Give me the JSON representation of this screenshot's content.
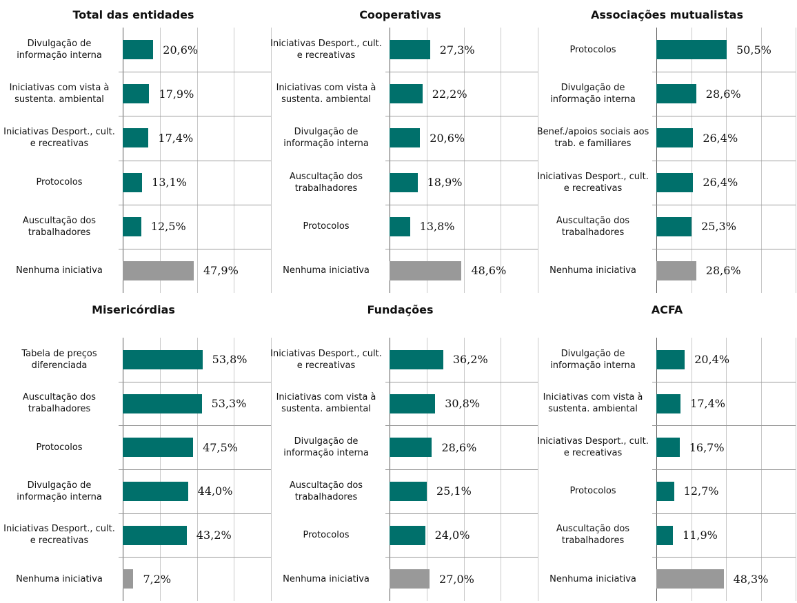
{
  "chart_data": [
    {
      "type": "barh",
      "title": "Total das entidades",
      "categories": [
        "Divulgação de informação interna",
        "Iniciativas com vista à sustenta. ambiental",
        "Iniciativas Desport., cult. e recreativas",
        "Protocolos",
        "Auscultação dos trabalhadores",
        "Nenhuma iniciativa"
      ],
      "values": [
        20.6,
        17.9,
        17.4,
        13.1,
        12.5,
        47.9
      ],
      "value_labels": [
        "20,6%",
        "17,9%",
        "17,4%",
        "13,1%",
        "12,5%",
        "47,9%"
      ],
      "colors": [
        "#00706b",
        "#00706b",
        "#00706b",
        "#00706b",
        "#00706b",
        "#999999"
      ],
      "xlim": [
        0,
        100
      ],
      "xticks": [
        0,
        25,
        50,
        75,
        100
      ],
      "grid": true
    },
    {
      "type": "barh",
      "title": "Cooperativas",
      "categories": [
        "Iniciativas Desport., cult. e recreativas",
        "Iniciativas com vista à sustenta. ambiental",
        "Divulgação de informação interna",
        "Auscultação dos trabalhadores",
        "Protocolos",
        "Nenhuma iniciativa"
      ],
      "values": [
        27.3,
        22.2,
        20.6,
        18.9,
        13.8,
        48.6
      ],
      "value_labels": [
        "27,3%",
        "22,2%",
        "20,6%",
        "18,9%",
        "13,8%",
        "48,6%"
      ],
      "colors": [
        "#00706b",
        "#00706b",
        "#00706b",
        "#00706b",
        "#00706b",
        "#999999"
      ],
      "xlim": [
        0,
        100
      ],
      "xticks": [
        0,
        25,
        50,
        75,
        100
      ],
      "grid": true
    },
    {
      "type": "barh",
      "title": "Associações mutualistas",
      "categories": [
        "Protocolos",
        "Divulgação de informação interna",
        "Benef./apoios sociais aos trab. e familiares",
        "Iniciativas Desport., cult. e recreativas",
        "Auscultação dos trabalhadores",
        "Nenhuma iniciativa"
      ],
      "values": [
        50.5,
        28.6,
        26.4,
        26.4,
        25.3,
        28.6
      ],
      "value_labels": [
        "50,5%",
        "28,6%",
        "26,4%",
        "26,4%",
        "25,3%",
        "28,6%"
      ],
      "colors": [
        "#00706b",
        "#00706b",
        "#00706b",
        "#00706b",
        "#00706b",
        "#999999"
      ],
      "xlim": [
        0,
        100
      ],
      "xticks": [
        0,
        25,
        50,
        75,
        100
      ],
      "grid": true
    },
    {
      "type": "barh",
      "title": "Misericórdias",
      "categories": [
        "Tabela de preços diferenciada",
        "Auscultação dos trabalhadores",
        "Protocolos",
        "Divulgação de informação interna",
        "Iniciativas Desport., cult. e recreativas",
        "Nenhuma iniciativa"
      ],
      "values": [
        53.8,
        53.3,
        47.5,
        44.0,
        43.2,
        7.2
      ],
      "value_labels": [
        "53,8%",
        "53,3%",
        "47,5%",
        "44,0%",
        "43,2%",
        "7,2%"
      ],
      "colors": [
        "#00706b",
        "#00706b",
        "#00706b",
        "#00706b",
        "#00706b",
        "#999999"
      ],
      "xlim": [
        0,
        100
      ],
      "xticks": [
        0,
        25,
        50,
        75,
        100
      ],
      "grid": true
    },
    {
      "type": "barh",
      "title": "Fundações",
      "categories": [
        "Iniciativas Desport., cult. e recreativas",
        "Iniciativas com vista à sustenta. ambiental",
        "Divulgação de informação interna",
        "Auscultação dos trabalhadores",
        "Protocolos",
        "Nenhuma iniciativa"
      ],
      "values": [
        36.2,
        30.8,
        28.6,
        25.1,
        24.0,
        27.0
      ],
      "value_labels": [
        "36,2%",
        "30,8%",
        "28,6%",
        "25,1%",
        "24,0%",
        "27,0%"
      ],
      "colors": [
        "#00706b",
        "#00706b",
        "#00706b",
        "#00706b",
        "#00706b",
        "#999999"
      ],
      "xlim": [
        0,
        100
      ],
      "xticks": [
        0,
        25,
        50,
        75,
        100
      ],
      "grid": true
    },
    {
      "type": "barh",
      "title": "ACFA",
      "categories": [
        "Divulgação de informação interna",
        "Iniciativas com vista à sustenta. ambiental",
        "Iniciativas Desport., cult. e recreativas",
        "Protocolos",
        "Auscultação dos trabalhadores",
        "Nenhuma iniciativa"
      ],
      "values": [
        20.4,
        17.4,
        16.7,
        12.7,
        11.9,
        48.3
      ],
      "value_labels": [
        "20,4%",
        "17,4%",
        "16,7%",
        "12,7%",
        "11,9%",
        "48,3%"
      ],
      "colors": [
        "#00706b",
        "#00706b",
        "#00706b",
        "#00706b",
        "#00706b",
        "#999999"
      ],
      "xlim": [
        0,
        100
      ],
      "xticks": [
        0,
        25,
        50,
        75,
        100
      ],
      "grid": true
    }
  ]
}
